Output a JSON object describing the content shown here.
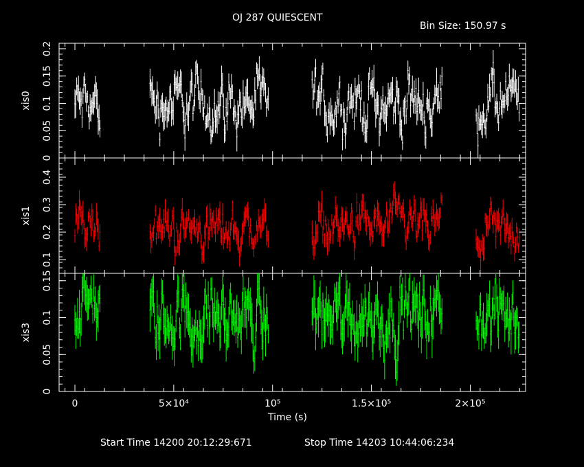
{
  "title": "OJ 287 QUIESCENT",
  "bin_size_text": "Bin Size: 150.97 s",
  "footer": {
    "start": "Start Time 14200 20:12:29:671",
    "stop": "Stop Time 14203 10:44:06:234"
  },
  "chart_data": {
    "type": "line",
    "title": "OJ 287 QUIESCENT",
    "xlabel": "Time (s)",
    "xlim": [
      -8000,
      228000
    ],
    "x_ticks": [
      {
        "v": 0,
        "label": "0"
      },
      {
        "v": 50000,
        "label": "5×10⁴"
      },
      {
        "v": 100000,
        "label": "10⁵"
      },
      {
        "v": 150000,
        "label": "1.5×10⁵"
      },
      {
        "v": 200000,
        "label": "2×10⁵"
      }
    ],
    "segments": [
      [
        0,
        13000
      ],
      [
        38000,
        98000
      ],
      [
        120000,
        186000
      ],
      [
        203000,
        225000
      ]
    ],
    "panels": [
      {
        "name": "xis0",
        "ylabel": "xis0",
        "color": "#ffffff",
        "ylim": [
          0,
          0.21
        ],
        "yticks": [
          0,
          0.05,
          0.1,
          0.15,
          0.2
        ],
        "ytick_labels": [
          "0",
          "0.05",
          "0.1",
          "0.15",
          "0.2"
        ],
        "segment_means": [
          0.095,
          0.1,
          0.1,
          0.1
        ],
        "spread": 0.022,
        "err": 0.018
      },
      {
        "name": "xis1",
        "ylabel": "xis1",
        "color": "#ff0000",
        "ylim": [
          0.05,
          0.47
        ],
        "yticks": [
          0.1,
          0.2,
          0.3,
          0.4
        ],
        "ytick_labels": [
          "0.1",
          "0.2",
          "0.3",
          "0.4"
        ],
        "segment_means": [
          0.235,
          0.21,
          0.22,
          0.195
        ],
        "spread": 0.035,
        "err": 0.03
      },
      {
        "name": "xis3",
        "ylabel": "xis3",
        "color": "#00ff00",
        "ylim": [
          0,
          0.16
        ],
        "yticks": [
          0,
          0.05,
          0.1,
          0.15
        ],
        "ytick_labels": [
          "0",
          "0.05",
          "0.1",
          "0.15"
        ],
        "segment_means": [
          0.115,
          0.1,
          0.105,
          0.1
        ],
        "spread": 0.018,
        "err": 0.02
      }
    ]
  }
}
